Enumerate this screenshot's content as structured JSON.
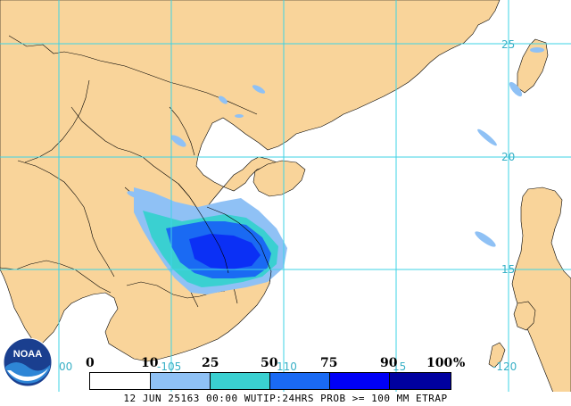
{
  "map": {
    "colors": {
      "ocean": "#ffffff",
      "land": "#f9d49a",
      "grid": "#3dd3e6",
      "prob_10": "#8fc1f5",
      "prob_25": "#3ad0d1",
      "prob_50": "#1a6af3",
      "prob_75": "#0000f6",
      "prob_90": "#0000a0"
    },
    "latitude_labels": [
      "25",
      "20",
      "15"
    ],
    "longitude_labels": [
      "100",
      "105",
      "110",
      "115",
      "120"
    ],
    "lon_label_shown": [
      "00",
      "-105",
      "110",
      "15",
      "-120"
    ]
  },
  "legend": {
    "ticks": [
      "0",
      "10",
      "25",
      "50",
      "75",
      "90",
      "100"
    ],
    "unit": "%",
    "bins": [
      {
        "range": "0-10",
        "color": "#ffffff"
      },
      {
        "range": "10-25",
        "color": "#8fc1f5"
      },
      {
        "range": "25-50",
        "color": "#3ad0d1"
      },
      {
        "range": "50-75",
        "color": "#1a6af3"
      },
      {
        "range": "75-90",
        "color": "#0000f6"
      },
      {
        "range": "90-100",
        "color": "#0000a0"
      }
    ]
  },
  "footer": {
    "caption": "12 JUN 25163 00:00 WUTIP:24HRS PROB >= 100 MM ETRAP"
  },
  "logo": {
    "text": "NOAA"
  }
}
